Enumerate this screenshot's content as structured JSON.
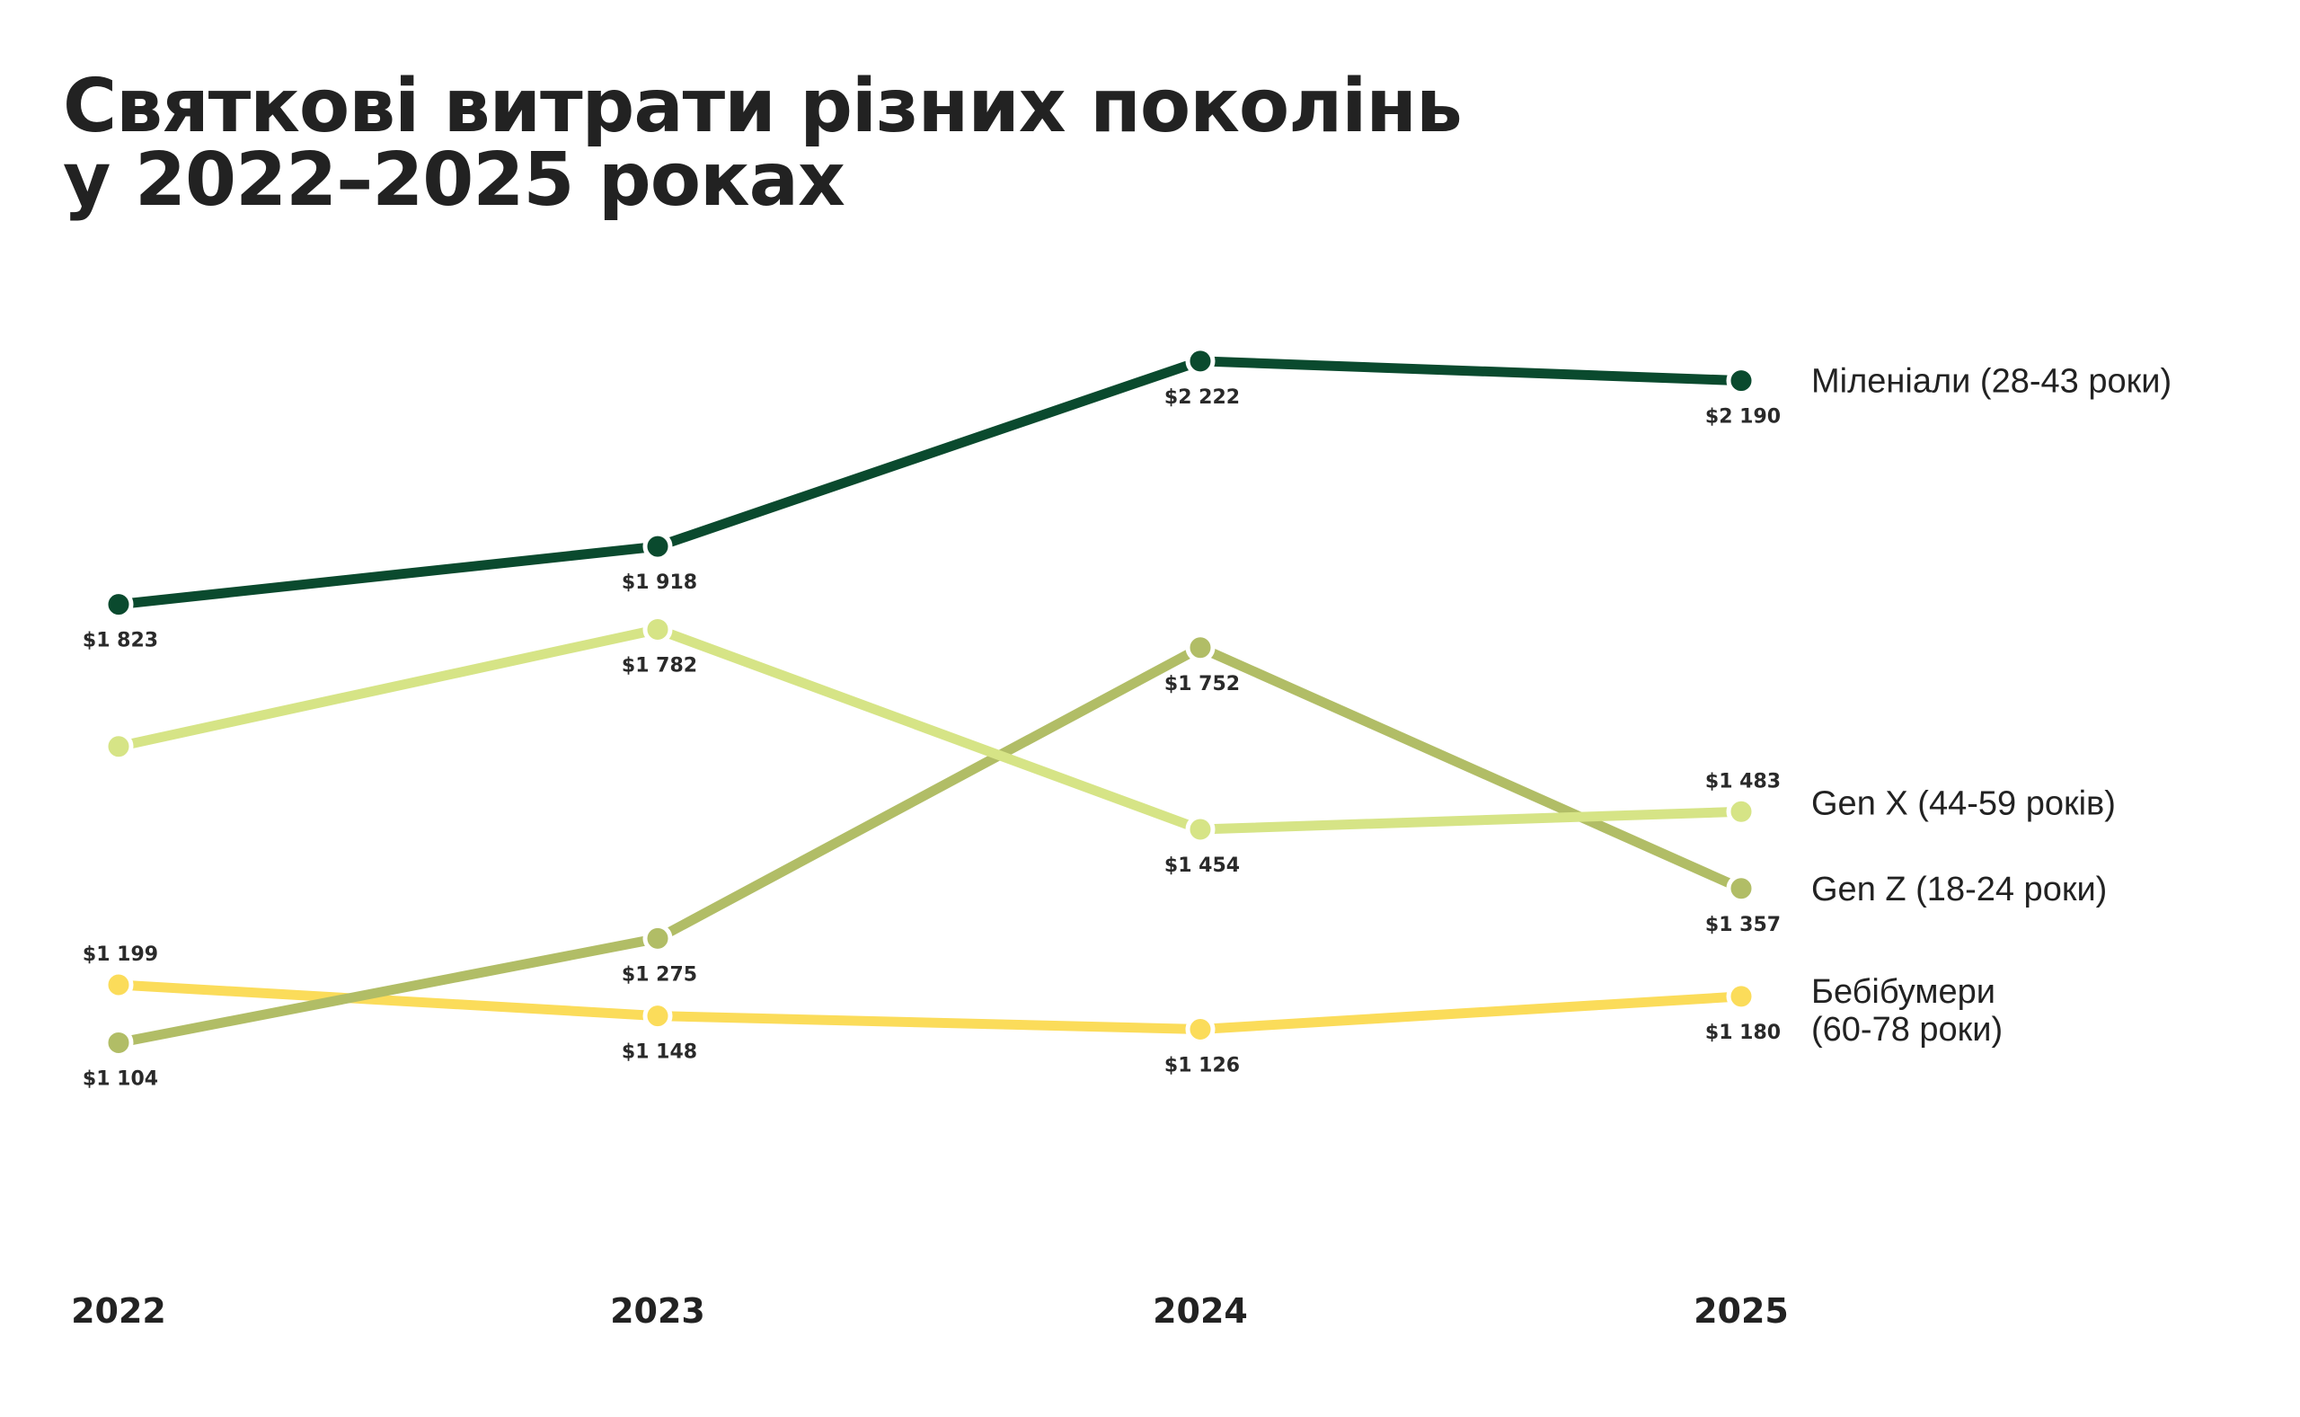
{
  "title": {
    "line1": "Святкові витрати різних поколінь",
    "line2": "у 2022–2025 роках"
  },
  "chart_data": {
    "type": "line",
    "title": "Святкові витрати різних поколінь у 2022–2025 роках",
    "x": [
      "2022",
      "2023",
      "2024",
      "2025"
    ],
    "ylim": [
      1000,
      2300
    ],
    "grid": false,
    "legend": "right (labels at line ends)",
    "series": [
      {
        "name": "Міленіали (28-43 роки)",
        "name_lines": [
          "Міленіали (28-43 роки)"
        ],
        "color": "#0a4a2e",
        "values": [
          1823,
          1918,
          2222,
          2190
        ],
        "labels": [
          "$1 823",
          "$1 918",
          "$2 222",
          "$2 190"
        ]
      },
      {
        "name": "Gen X (44-59 років)",
        "name_lines": [
          "Gen X (44-59 років)"
        ],
        "color": "#d6e486",
        "values": [
          1590,
          1782,
          1454,
          1483
        ],
        "labels": [
          "",
          "$1 782",
          "$1 454",
          "$1 483"
        ]
      },
      {
        "name": "Gen Z (18-24 роки)",
        "name_lines": [
          "Gen Z (18-24 роки)"
        ],
        "color": "#b1bd66",
        "values": [
          1104,
          1275,
          1752,
          1357
        ],
        "labels": [
          "$1 104",
          "$1 275",
          "$1 752",
          "$1 357"
        ]
      },
      {
        "name": "Бебібумери (60-78 роки)",
        "name_lines": [
          "Бебібумери",
          "(60-78 роки)"
        ],
        "color": "#fbdc5a",
        "values": [
          1199,
          1148,
          1126,
          1180
        ],
        "labels": [
          "$1 199",
          "$1 148",
          "$1 126",
          "$1 180"
        ]
      }
    ]
  }
}
